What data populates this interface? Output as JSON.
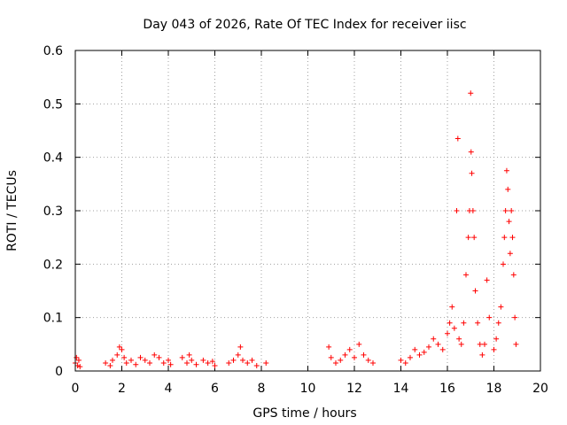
{
  "chart_data": {
    "type": "scatter",
    "title": "Day 043 of 2026, Rate Of TEC Index for receiver iisc",
    "xlabel": "GPS time / hours",
    "ylabel": "ROTI / TECUs",
    "xlim": [
      0,
      20
    ],
    "ylim": [
      0,
      0.6
    ],
    "xticks": [
      "0",
      "2",
      "4",
      "6",
      "8",
      "10",
      "12",
      "14",
      "16",
      "18",
      "20"
    ],
    "yticks": [
      "0",
      "0.1",
      "0.2",
      "0.3",
      "0.4",
      "0.5",
      "0.6"
    ],
    "grid": true,
    "marker": "+",
    "color": "#ff0000",
    "series": [
      {
        "name": "ROTI",
        "points": [
          [
            0.0,
            0.015
          ],
          [
            0.05,
            0.025
          ],
          [
            0.1,
            0.01
          ],
          [
            0.15,
            0.02
          ],
          [
            0.2,
            0.008
          ],
          [
            1.3,
            0.015
          ],
          [
            1.5,
            0.01
          ],
          [
            1.6,
            0.02
          ],
          [
            1.8,
            0.03
          ],
          [
            1.9,
            0.045
          ],
          [
            2.0,
            0.04
          ],
          [
            2.1,
            0.025
          ],
          [
            2.2,
            0.015
          ],
          [
            2.4,
            0.02
          ],
          [
            2.6,
            0.012
          ],
          [
            2.8,
            0.025
          ],
          [
            3.0,
            0.02
          ],
          [
            3.2,
            0.015
          ],
          [
            3.4,
            0.03
          ],
          [
            3.6,
            0.025
          ],
          [
            3.8,
            0.015
          ],
          [
            4.0,
            0.02
          ],
          [
            4.1,
            0.012
          ],
          [
            4.6,
            0.025
          ],
          [
            4.8,
            0.015
          ],
          [
            4.9,
            0.03
          ],
          [
            5.0,
            0.02
          ],
          [
            5.2,
            0.012
          ],
          [
            5.5,
            0.02
          ],
          [
            5.7,
            0.015
          ],
          [
            5.9,
            0.018
          ],
          [
            6.0,
            0.01
          ],
          [
            6.6,
            0.015
          ],
          [
            6.8,
            0.02
          ],
          [
            7.0,
            0.03
          ],
          [
            7.1,
            0.045
          ],
          [
            7.2,
            0.02
          ],
          [
            7.4,
            0.015
          ],
          [
            7.6,
            0.02
          ],
          [
            7.8,
            0.01
          ],
          [
            8.2,
            0.015
          ],
          [
            10.9,
            0.045
          ],
          [
            11.0,
            0.025
          ],
          [
            11.2,
            0.015
          ],
          [
            11.4,
            0.02
          ],
          [
            11.6,
            0.03
          ],
          [
            11.8,
            0.04
          ],
          [
            12.0,
            0.025
          ],
          [
            12.2,
            0.05
          ],
          [
            12.4,
            0.03
          ],
          [
            12.6,
            0.02
          ],
          [
            12.8,
            0.015
          ],
          [
            14.0,
            0.02
          ],
          [
            14.2,
            0.015
          ],
          [
            14.4,
            0.025
          ],
          [
            14.6,
            0.04
          ],
          [
            14.8,
            0.03
          ],
          [
            15.0,
            0.035
          ],
          [
            15.2,
            0.045
          ],
          [
            15.4,
            0.06
          ],
          [
            15.6,
            0.05
          ],
          [
            15.8,
            0.04
          ],
          [
            16.0,
            0.07
          ],
          [
            16.1,
            0.09
          ],
          [
            16.2,
            0.12
          ],
          [
            16.3,
            0.08
          ],
          [
            16.4,
            0.3
          ],
          [
            16.45,
            0.435
          ],
          [
            16.5,
            0.06
          ],
          [
            16.6,
            0.05
          ],
          [
            16.7,
            0.09
          ],
          [
            16.8,
            0.18
          ],
          [
            16.9,
            0.25
          ],
          [
            16.95,
            0.3
          ],
          [
            17.0,
            0.52
          ],
          [
            17.02,
            0.41
          ],
          [
            17.05,
            0.37
          ],
          [
            17.1,
            0.3
          ],
          [
            17.15,
            0.25
          ],
          [
            17.2,
            0.15
          ],
          [
            17.3,
            0.09
          ],
          [
            17.4,
            0.05
          ],
          [
            17.5,
            0.03
          ],
          [
            17.6,
            0.05
          ],
          [
            17.7,
            0.17
          ],
          [
            17.8,
            0.1
          ],
          [
            18.0,
            0.04
          ],
          [
            18.1,
            0.06
          ],
          [
            18.2,
            0.09
          ],
          [
            18.3,
            0.12
          ],
          [
            18.4,
            0.2
          ],
          [
            18.45,
            0.25
          ],
          [
            18.5,
            0.3
          ],
          [
            18.55,
            0.375
          ],
          [
            18.6,
            0.34
          ],
          [
            18.65,
            0.28
          ],
          [
            18.7,
            0.22
          ],
          [
            18.75,
            0.3
          ],
          [
            18.8,
            0.25
          ],
          [
            18.85,
            0.18
          ],
          [
            18.9,
            0.1
          ],
          [
            18.95,
            0.05
          ]
        ]
      }
    ]
  }
}
